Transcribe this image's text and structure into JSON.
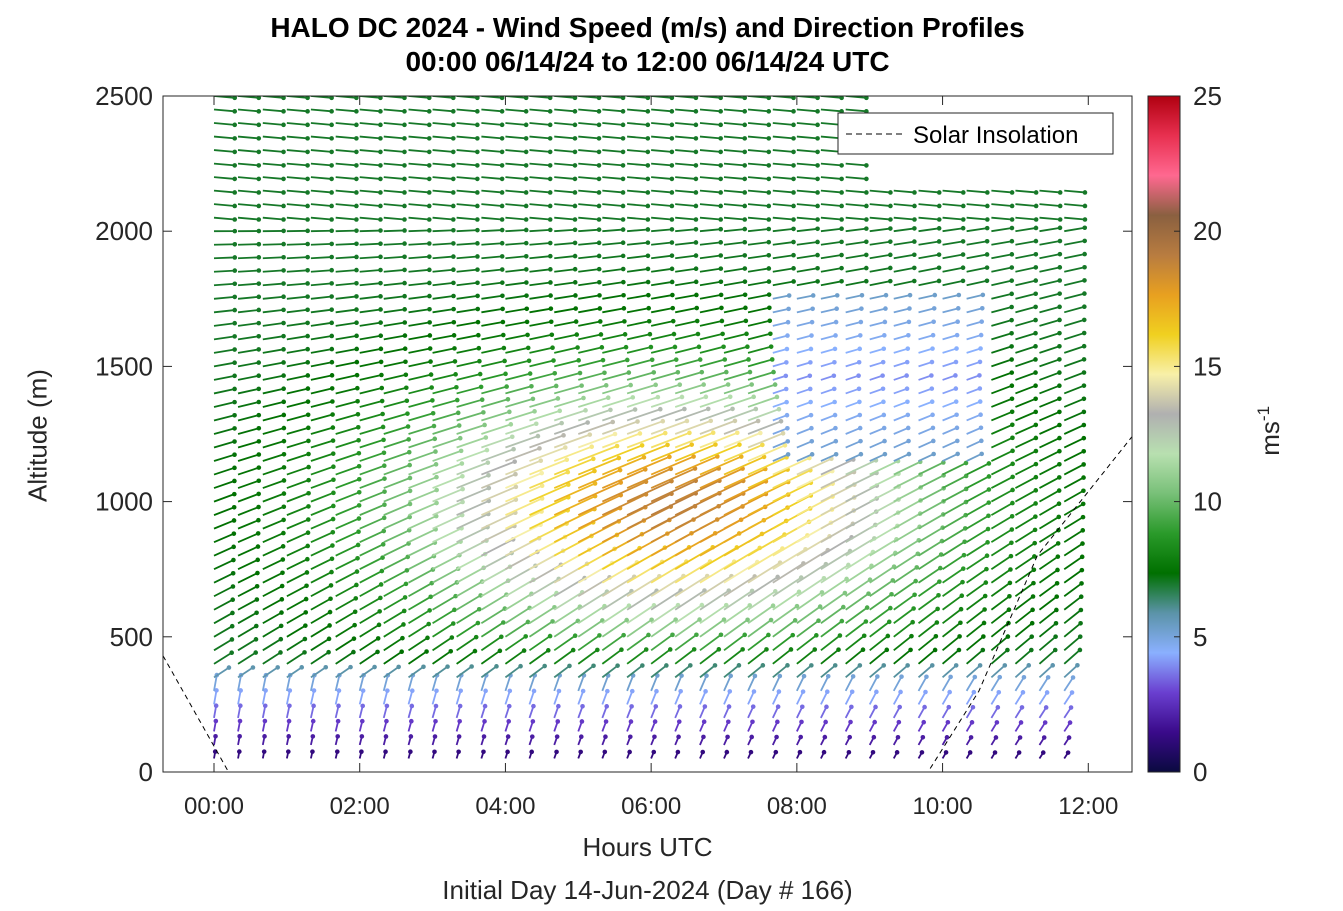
{
  "chart_data": {
    "type": "wind-barb-profile",
    "title": "HALO DC 2024 - Wind Speed (m/s) and Direction Profiles",
    "subtitle": "00:00 06/14/24 to 12:00 06/14/24  UTC",
    "xlabel": "Hours UTC",
    "ylabel": "Altitude (m)",
    "footer": "Initial Day 14-Jun-2024 (Day # 166)",
    "x_tick_labels": [
      "00:00",
      "02:00",
      "04:00",
      "06:00",
      "08:00",
      "10:00",
      "12:00"
    ],
    "x_ticks_hours": [
      0,
      2,
      4,
      6,
      8,
      10,
      12
    ],
    "xlim_hours": [
      -0.7,
      12.6
    ],
    "y_tick_labels": [
      "0",
      "500",
      "1000",
      "1500",
      "2000",
      "2500"
    ],
    "y_ticks": [
      0,
      500,
      1000,
      1500,
      2000,
      2500
    ],
    "ylim": [
      0,
      2500
    ],
    "legend": {
      "entries": [
        "Solar Insolation"
      ],
      "placement": "top-right"
    },
    "colorbar": {
      "label": "ms",
      "label_superscript": "-1",
      "tick_labels": [
        "0",
        "5",
        "10",
        "15",
        "20",
        "25"
      ],
      "ticks": [
        0,
        5,
        10,
        15,
        20,
        25
      ],
      "range": [
        0,
        25
      ],
      "colors": [
        "#0a0a40",
        "#3a0a8a",
        "#6a3fd0",
        "#8ab0ff",
        "#5b93a8",
        "#007000",
        "#2a9a2a",
        "#78c078",
        "#b8e0b0",
        "#b0b0b0",
        "#f8f0a8",
        "#f0d020",
        "#e8a020",
        "#b87c40",
        "#8a6040",
        "#ff6890",
        "#e83050",
        "#b00010"
      ]
    },
    "profile_times_hours": [
      0.0,
      0.33,
      0.67,
      1.0,
      1.33,
      1.67,
      2.0,
      2.33,
      2.67,
      3.0,
      3.33,
      3.67,
      4.0,
      4.33,
      4.67,
      5.0,
      5.33,
      5.67,
      6.0,
      6.33,
      6.67,
      7.0,
      7.33,
      7.67,
      8.0,
      8.33,
      8.67,
      9.0,
      9.33,
      9.67,
      10.0,
      10.33,
      10.67,
      11.0,
      11.33,
      11.67
    ],
    "wind_fields": {
      "description_low_level": "Wind speed 0-3 m/s near surface, increasing with height",
      "jet_core": {
        "max_speed": 18,
        "center_hours": 6.0,
        "center_altitude": 950
      },
      "upper_level_speed": 7,
      "mid_level_band": {
        "speed": 4,
        "hours": [
          7.5,
          10.5
        ],
        "altitude_range": [
          1100,
          1800
        ]
      }
    },
    "solar_insolation": [
      {
        "hours": -0.7,
        "altitude": 430
      },
      {
        "hours": 0.2,
        "altitude": 0
      },
      {
        "hours": 9.8,
        "altitude": 0
      },
      {
        "hours": 10.5,
        "altitude": 300
      },
      {
        "hours": 11.3,
        "altitude": 800
      },
      {
        "hours": 12.6,
        "altitude": 1240
      }
    ]
  }
}
